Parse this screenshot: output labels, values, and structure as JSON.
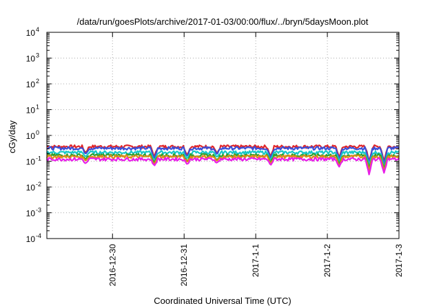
{
  "chart_data": {
    "type": "line",
    "title": "/data/run/goesPlots/archive/2017-01-03/00:00/flux/../bryn/5daysMoon.plot",
    "xlabel": "Coordinated Universal Time (UTC)",
    "ylabel": "cGy/day",
    "yscale": "log",
    "ylim": [
      0.0001,
      10000
    ],
    "y_ticks": [
      {
        "base": "10",
        "exp": "-4",
        "value": 0.0001
      },
      {
        "base": "10",
        "exp": "-3",
        "value": 0.001
      },
      {
        "base": "10",
        "exp": "-2",
        "value": 0.01
      },
      {
        "base": "10",
        "exp": "-1",
        "value": 0.1
      },
      {
        "base": "10",
        "exp": "0",
        "value": 1
      },
      {
        "base": "10",
        "exp": "1",
        "value": 10
      },
      {
        "base": "10",
        "exp": "2",
        "value": 100
      },
      {
        "base": "10",
        "exp": "3",
        "value": 1000
      },
      {
        "base": "10",
        "exp": "4",
        "value": 10000
      }
    ],
    "xlim": [
      "2016-12-29T02:00",
      "2017-01-03T00:00"
    ],
    "x_ticks": [
      {
        "label": "2016-12-30",
        "value": "2016-12-30T00:00"
      },
      {
        "label": "2016-12-31",
        "value": "2016-12-31T00:00"
      },
      {
        "label": "2017-1-1",
        "value": "2017-01-01T00:00"
      },
      {
        "label": "2017-1-2",
        "value": "2017-01-02T00:00"
      },
      {
        "label": "2017-1-3",
        "value": "2017-01-03T00:00"
      }
    ],
    "grid": true,
    "series": [
      {
        "color": "#e0262a",
        "typical": 0.37,
        "dips": [
          [
            "2016-12-29T15:00",
            0.21
          ],
          [
            "2016-12-30T14:00",
            0.15
          ],
          [
            "2016-12-31T01:00",
            0.17
          ],
          [
            "2016-12-31T11:00",
            0.2
          ],
          [
            "2017-01-01T05:00",
            0.15
          ],
          [
            "2017-01-02T04:00",
            0.14
          ],
          [
            "2017-01-02T14:00",
            0.1
          ],
          [
            "2017-01-02T19:00",
            0.1
          ]
        ]
      },
      {
        "color": "#3a4fd8",
        "typical": 0.32,
        "dips": [
          [
            "2016-12-29T15:00",
            0.19
          ],
          [
            "2016-12-30T14:00",
            0.12
          ],
          [
            "2016-12-31T01:00",
            0.15
          ],
          [
            "2016-12-31T11:00",
            0.18
          ],
          [
            "2017-01-01T05:00",
            0.13
          ],
          [
            "2017-01-02T04:00",
            0.12
          ],
          [
            "2017-01-02T14:00",
            0.09
          ],
          [
            "2017-01-02T19:00",
            0.08
          ]
        ]
      },
      {
        "color": "#18c8c8",
        "typical": 0.22,
        "dips": [
          [
            "2016-12-29T15:00",
            0.15
          ],
          [
            "2016-12-30T14:00",
            0.1
          ],
          [
            "2016-12-31T01:00",
            0.12
          ],
          [
            "2016-12-31T11:00",
            0.14
          ],
          [
            "2017-01-01T05:00",
            0.11
          ],
          [
            "2017-01-02T04:00",
            0.1
          ],
          [
            "2017-01-02T14:00",
            0.07
          ],
          [
            "2017-01-02T19:00",
            0.06
          ]
        ]
      },
      {
        "color": "#2ca02c",
        "typical": 0.17,
        "dips": [
          [
            "2016-12-29T15:00",
            0.12
          ],
          [
            "2016-12-30T14:00",
            0.085
          ],
          [
            "2016-12-31T01:00",
            0.1
          ],
          [
            "2016-12-31T11:00",
            0.11
          ],
          [
            "2017-01-01T05:00",
            0.09
          ],
          [
            "2017-01-02T04:00",
            0.075
          ],
          [
            "2017-01-02T14:00",
            0.055
          ],
          [
            "2017-01-02T19:00",
            0.05
          ]
        ]
      },
      {
        "color": "#e08a1a",
        "typical": 0.15,
        "dips": [
          [
            "2016-12-29T15:00",
            0.105
          ],
          [
            "2016-12-30T14:00",
            0.075
          ],
          [
            "2016-12-31T01:00",
            0.09
          ],
          [
            "2016-12-31T11:00",
            0.1
          ],
          [
            "2017-01-01T05:00",
            0.08
          ],
          [
            "2017-01-02T04:00",
            0.065
          ],
          [
            "2017-01-02T14:00",
            0.045
          ],
          [
            "2017-01-02T19:00",
            0.042
          ]
        ]
      },
      {
        "color": "#e81ee8",
        "typical": 0.12,
        "dips": [
          [
            "2016-12-29T15:00",
            0.08
          ],
          [
            "2016-12-30T14:00",
            0.065
          ],
          [
            "2016-12-31T01:00",
            0.075
          ],
          [
            "2016-12-31T11:00",
            0.085
          ],
          [
            "2017-01-01T05:00",
            0.07
          ],
          [
            "2017-01-02T04:00",
            0.06
          ],
          [
            "2017-01-02T14:00",
            0.03
          ],
          [
            "2017-01-02T19:00",
            0.035
          ]
        ]
      }
    ]
  }
}
